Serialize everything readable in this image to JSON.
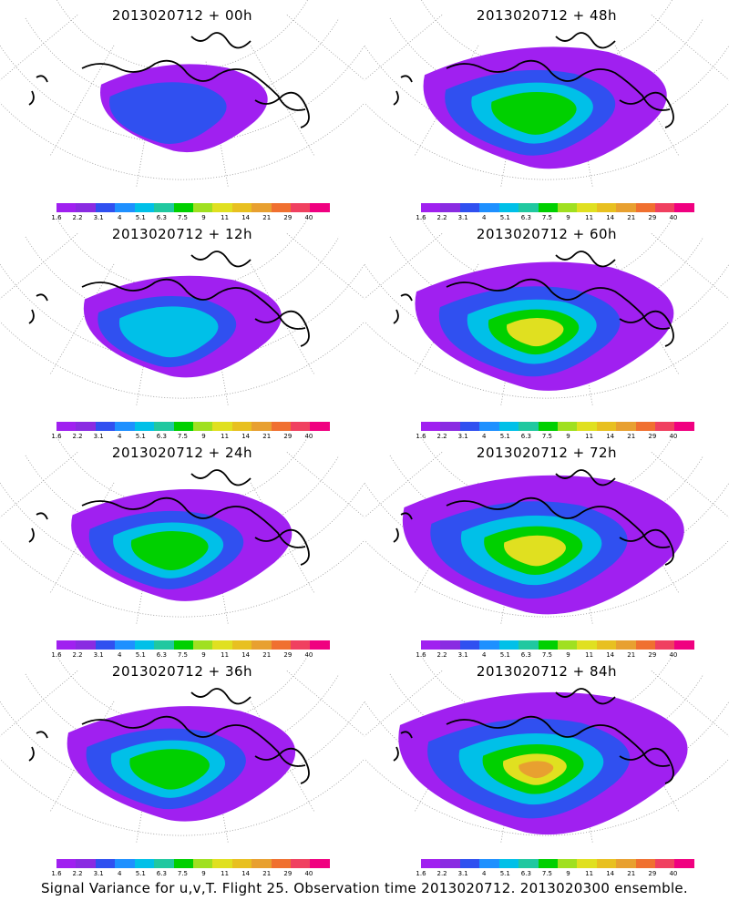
{
  "colorbar": {
    "colors": [
      "#a020f0",
      "#8a2be2",
      "#3050f0",
      "#1e90ff",
      "#00c0e8",
      "#20c8a0",
      "#00d000",
      "#a0e020",
      "#e0e020",
      "#e8c020",
      "#e8a030",
      "#f07030",
      "#f04060",
      "#f00080"
    ],
    "labels": [
      "1.6",
      "2.2",
      "3.1",
      "4",
      "5.1",
      "6.3",
      "7.5",
      "9",
      "11",
      "14",
      "21",
      "29",
      "40"
    ]
  },
  "panels": [
    {
      "title": "2013020712 + 00h",
      "intensity": 0.1
    },
    {
      "title": "2013020712 + 48h",
      "intensity": 0.6
    },
    {
      "title": "2013020712 + 12h",
      "intensity": 0.3
    },
    {
      "title": "2013020712 + 60h",
      "intensity": 0.7
    },
    {
      "title": "2013020712 + 24h",
      "intensity": 0.45
    },
    {
      "title": "2013020712 + 72h",
      "intensity": 0.85
    },
    {
      "title": "2013020712 + 36h",
      "intensity": 0.5
    },
    {
      "title": "2013020712 + 84h",
      "intensity": 0.9
    }
  ],
  "footer": "Signal Variance for u,v,T. Flight 25. Observation time 2013020712. 2013020300 ensemble."
}
